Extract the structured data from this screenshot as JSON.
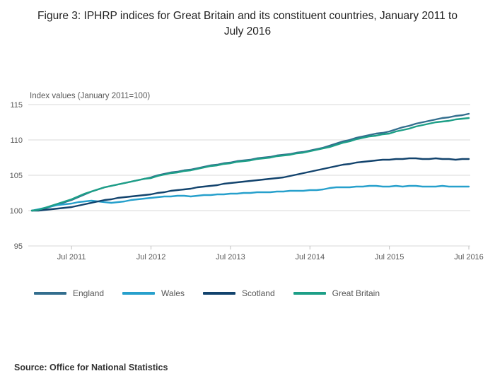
{
  "title": "Figure 3: IPHRP indices for Great Britain and its constituent countries, January 2011 to July 2016",
  "source": "Source: Office for National Statistics",
  "chart_data": {
    "type": "line",
    "title": "Figure 3: IPHRP indices for Great Britain and its constituent countries, January 2011 to July 2016",
    "axis_note": "Index values (January 2011=100)",
    "x_start_label": "Jan 2011",
    "x_tick_labels": [
      "Jul 2011",
      "Jul 2012",
      "Jul 2013",
      "Jul 2014",
      "Jul 2015",
      "Jul 2016"
    ],
    "x_tick_indices": [
      6,
      18,
      30,
      42,
      54,
      66
    ],
    "y_ticks": [
      95,
      100,
      105,
      110,
      115
    ],
    "ylim": [
      95,
      115
    ],
    "grid": "horizontal",
    "legend_position": "bottom",
    "grid_color": "#d9d9d9",
    "tick_color": "#bfbfbf",
    "label_color": "#595959",
    "series": [
      {
        "name": "England",
        "color": "#336e8e",
        "values": [
          100.0,
          100.1,
          100.3,
          100.6,
          100.9,
          101.2,
          101.5,
          101.9,
          102.3,
          102.7,
          103.0,
          103.3,
          103.5,
          103.7,
          103.9,
          104.1,
          104.3,
          104.5,
          104.7,
          105.0,
          105.2,
          105.4,
          105.5,
          105.7,
          105.8,
          106.0,
          106.2,
          106.4,
          106.5,
          106.7,
          106.8,
          107.0,
          107.1,
          107.2,
          107.4,
          107.5,
          107.6,
          107.8,
          107.9,
          108.0,
          108.2,
          108.3,
          108.5,
          108.7,
          108.9,
          109.2,
          109.5,
          109.8,
          110.0,
          110.3,
          110.5,
          110.7,
          110.9,
          111.0,
          111.2,
          111.5,
          111.8,
          112.0,
          112.3,
          112.5,
          112.7,
          112.9,
          113.1,
          113.2,
          113.4,
          113.5,
          113.7
        ]
      },
      {
        "name": "Wales",
        "color": "#27a0cc",
        "values": [
          100.0,
          100.2,
          100.4,
          100.6,
          100.8,
          100.9,
          101.0,
          101.2,
          101.3,
          101.4,
          101.3,
          101.2,
          101.1,
          101.2,
          101.3,
          101.5,
          101.6,
          101.7,
          101.8,
          101.9,
          102.0,
          102.0,
          102.1,
          102.1,
          102.0,
          102.1,
          102.2,
          102.2,
          102.3,
          102.3,
          102.4,
          102.4,
          102.5,
          102.5,
          102.6,
          102.6,
          102.6,
          102.7,
          102.7,
          102.8,
          102.8,
          102.8,
          102.9,
          102.9,
          103.0,
          103.2,
          103.3,
          103.3,
          103.3,
          103.4,
          103.4,
          103.5,
          103.5,
          103.4,
          103.4,
          103.5,
          103.4,
          103.5,
          103.5,
          103.4,
          103.4,
          103.4,
          103.5,
          103.4,
          103.4,
          103.4,
          103.4
        ]
      },
      {
        "name": "Scotland",
        "color": "#12436d",
        "values": [
          100.0,
          100.0,
          100.1,
          100.2,
          100.3,
          100.4,
          100.5,
          100.7,
          100.9,
          101.1,
          101.3,
          101.5,
          101.6,
          101.8,
          101.9,
          102.0,
          102.1,
          102.2,
          102.3,
          102.5,
          102.6,
          102.8,
          102.9,
          103.0,
          103.1,
          103.3,
          103.4,
          103.5,
          103.6,
          103.8,
          103.9,
          104.0,
          104.1,
          104.2,
          104.3,
          104.4,
          104.5,
          104.6,
          104.7,
          104.9,
          105.1,
          105.3,
          105.5,
          105.7,
          105.9,
          106.1,
          106.3,
          106.5,
          106.6,
          106.8,
          106.9,
          107.0,
          107.1,
          107.2,
          107.2,
          107.3,
          107.3,
          107.4,
          107.4,
          107.3,
          107.3,
          107.4,
          107.3,
          107.3,
          107.2,
          107.3,
          107.3
        ]
      },
      {
        "name": "Great Britain",
        "color": "#1d9f87",
        "values": [
          100.0,
          100.1,
          100.4,
          100.7,
          101.0,
          101.3,
          101.6,
          102.0,
          102.4,
          102.7,
          103.0,
          103.3,
          103.5,
          103.7,
          103.9,
          104.1,
          104.3,
          104.5,
          104.6,
          104.9,
          105.1,
          105.3,
          105.4,
          105.6,
          105.7,
          105.9,
          106.1,
          106.3,
          106.4,
          106.6,
          106.7,
          106.9,
          107.0,
          107.1,
          107.3,
          107.4,
          107.5,
          107.7,
          107.8,
          107.9,
          108.1,
          108.2,
          108.4,
          108.6,
          108.8,
          109.0,
          109.3,
          109.6,
          109.8,
          110.1,
          110.3,
          110.5,
          110.6,
          110.8,
          110.9,
          111.2,
          111.4,
          111.6,
          111.9,
          112.1,
          112.3,
          112.5,
          112.6,
          112.7,
          112.9,
          113.0,
          113.1
        ]
      }
    ]
  }
}
